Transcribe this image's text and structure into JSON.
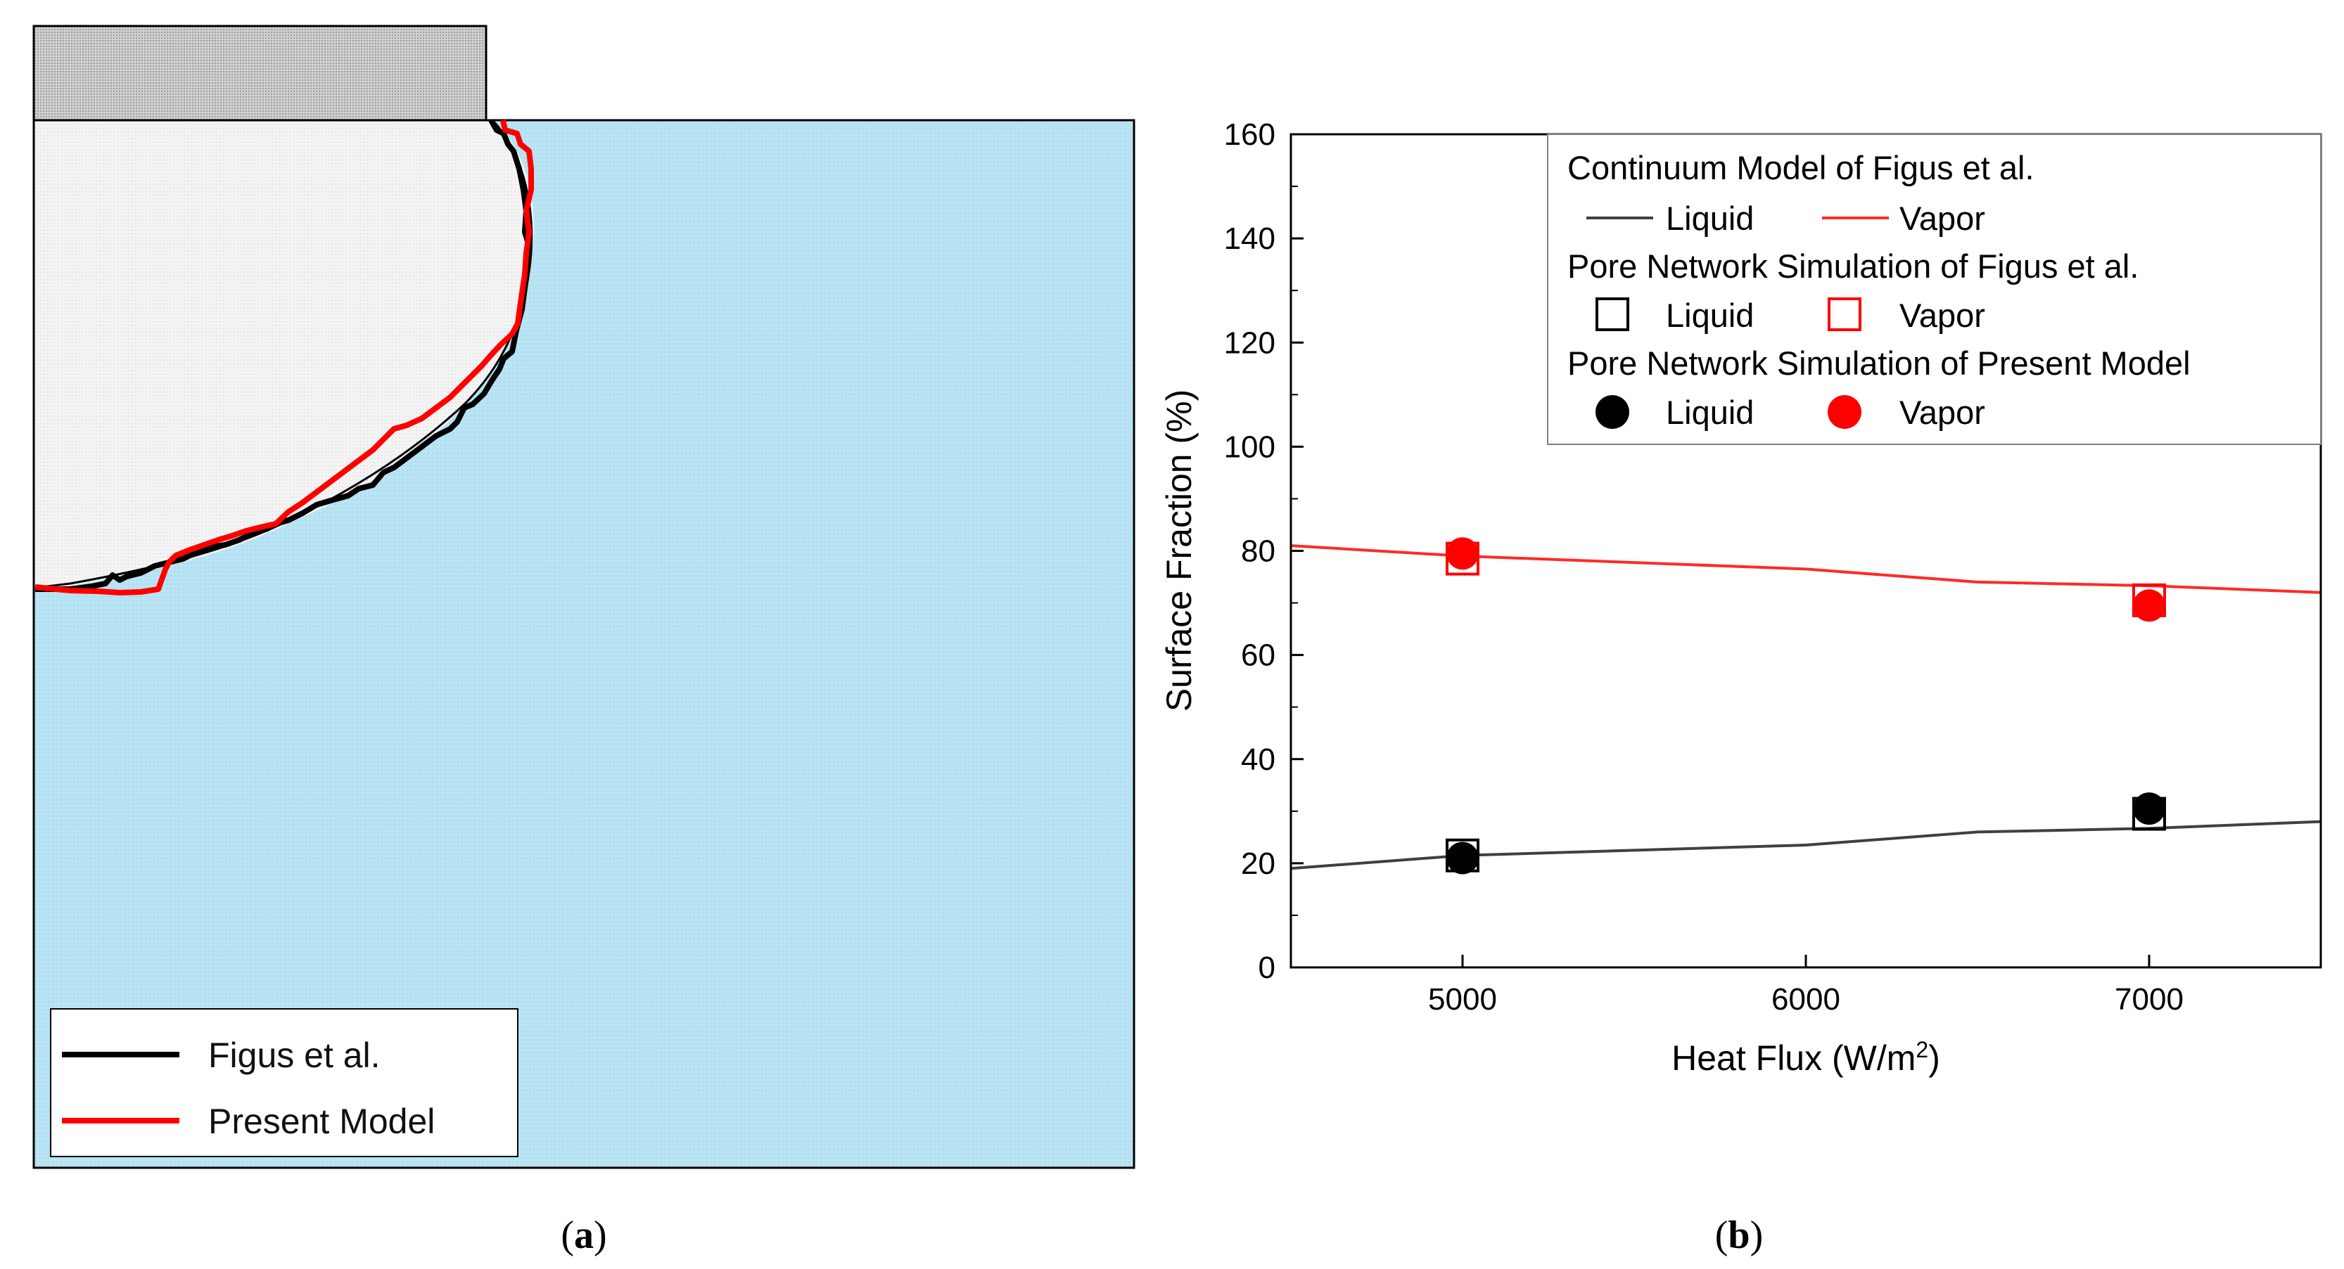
{
  "panel_a": {
    "label": "a",
    "legend": [
      {
        "label": "Figus et al.",
        "color": "#000000"
      },
      {
        "label": "Present Model",
        "color": "#ff0000"
      }
    ],
    "colors": {
      "liquid_region": "#b8e3f3",
      "vapor_region": "#f2f2f2",
      "heater": "#c8c8c8"
    }
  },
  "panel_b": {
    "label": "b"
  },
  "chart_data": {
    "type": "line",
    "xlabel": "Heat Flux (W/m",
    "xlabel_sup": "2",
    "xlabel_end": ")",
    "ylabel": "Surface Fraction (%)",
    "xlim": [
      4500,
      7500
    ],
    "ylim": [
      0,
      160
    ],
    "xticks": [
      5000,
      6000,
      7000
    ],
    "yticks": [
      0,
      20,
      40,
      60,
      80,
      100,
      120,
      140,
      160
    ],
    "legend": {
      "headers": [
        "Continuum Model of Figus et al.",
        "Pore Network Simulation of Figus et al.",
        "Pore Network Simulation of Present Model"
      ],
      "liquid_label": "Liquid",
      "vapor_label": "Vapor"
    },
    "series": [
      {
        "name": "Continuum Liquid",
        "kind": "line",
        "color": "#404040",
        "x": [
          4500,
          5000,
          6000,
          6500,
          7000,
          7500
        ],
        "y": [
          19,
          21.5,
          23.5,
          26,
          26.7,
          28
        ]
      },
      {
        "name": "Continuum Vapor",
        "kind": "line",
        "color": "#ff2a2a",
        "x": [
          4500,
          5000,
          6000,
          6500,
          7000,
          7500
        ],
        "y": [
          81,
          79,
          76.5,
          74,
          73.3,
          72
        ]
      },
      {
        "name": "Pore Network Figus Liquid",
        "kind": "open-square",
        "color": "#000000",
        "x": [
          5000,
          7000
        ],
        "y": [
          21.5,
          29.5
        ]
      },
      {
        "name": "Pore Network Figus Vapor",
        "kind": "open-square",
        "color": "#ff0000",
        "x": [
          5000,
          7000
        ],
        "y": [
          78.5,
          70.5
        ]
      },
      {
        "name": "Present Model Liquid",
        "kind": "filled-circle",
        "color": "#000000",
        "x": [
          5000,
          7000
        ],
        "y": [
          21,
          30.5
        ]
      },
      {
        "name": "Present Model Vapor",
        "kind": "filled-circle",
        "color": "#ff0000",
        "x": [
          5000,
          7000
        ],
        "y": [
          79.5,
          69.5
        ]
      }
    ]
  }
}
